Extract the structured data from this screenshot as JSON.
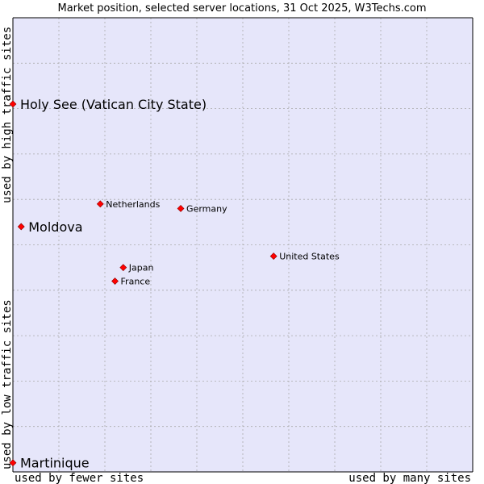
{
  "chart_data": {
    "type": "scatter",
    "title": "Market position, selected server locations, 31 Oct 2025, W3Techs.com",
    "xlabel_low": "used by fewer sites",
    "xlabel_high": "used by many sites",
    "ylabel_low": "used by low traffic sites",
    "ylabel_high": "used by high traffic sites",
    "xlim": [
      0,
      100
    ],
    "ylim": [
      0,
      100
    ],
    "grid": true,
    "colors": {
      "plot_bg": "#e6e6fa",
      "grid": "#aaaaaa",
      "point": "#ff0000",
      "point_stroke": "#880000",
      "frame": "#000000"
    },
    "points": [
      {
        "name": "Holy See (Vatican City State)",
        "x": 0.0,
        "y": 81.0,
        "size": "large"
      },
      {
        "name": "Moldova",
        "x": 1.8,
        "y": 54.0,
        "size": "large"
      },
      {
        "name": "Martinique",
        "x": 0.0,
        "y": 2.0,
        "size": "large"
      },
      {
        "name": "Netherlands",
        "x": 19.0,
        "y": 59.0,
        "size": "small"
      },
      {
        "name": "Germany",
        "x": 36.5,
        "y": 58.0,
        "size": "small"
      },
      {
        "name": "United States",
        "x": 56.7,
        "y": 47.5,
        "size": "small"
      },
      {
        "name": "Japan",
        "x": 24.0,
        "y": 45.0,
        "size": "small"
      },
      {
        "name": "France",
        "x": 22.2,
        "y": 42.0,
        "size": "small"
      }
    ]
  }
}
